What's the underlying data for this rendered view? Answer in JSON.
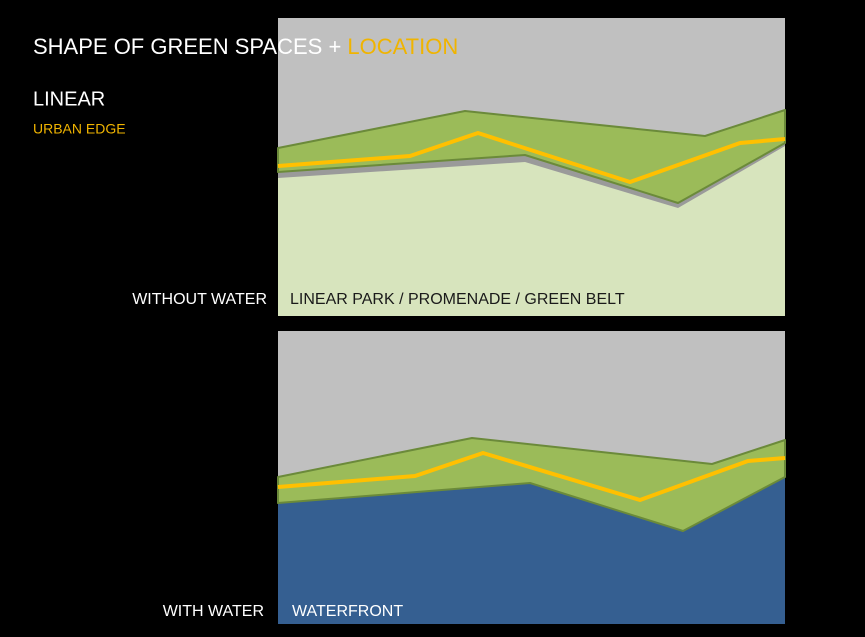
{
  "title": {
    "main": "SHAPE OF GREEN SPACES + ",
    "highlight": "LOCATION"
  },
  "subtitle": "LINEAR",
  "subheading": "URBAN EDGE",
  "panels": [
    {
      "label": "WITHOUT WATER",
      "caption": "LINEAR PARK / PROMENADE / GREEN BELT"
    },
    {
      "label": "WITH WATER",
      "caption": "WATERFRONT"
    }
  ]
}
